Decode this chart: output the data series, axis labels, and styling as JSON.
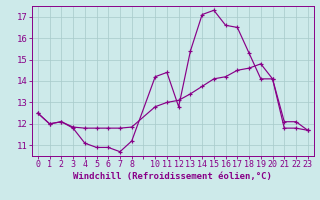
{
  "xlabel": "Windchill (Refroidissement éolien,°C)",
  "background_color": "#cdeaea",
  "line_color": "#880088",
  "grid_color": "#aacccc",
  "hours": [
    0,
    1,
    2,
    3,
    4,
    5,
    6,
    7,
    8,
    10,
    11,
    12,
    13,
    14,
    15,
    16,
    17,
    18,
    19,
    20,
    21,
    22,
    23
  ],
  "windchill": [
    12.5,
    12.0,
    12.1,
    11.8,
    11.1,
    10.9,
    10.9,
    10.7,
    11.2,
    14.2,
    14.4,
    12.8,
    15.4,
    17.1,
    17.3,
    16.6,
    16.5,
    15.3,
    14.1,
    14.1,
    12.1,
    12.1,
    11.7
  ],
  "temperature": [
    12.5,
    12.0,
    12.1,
    11.85,
    11.8,
    11.8,
    11.8,
    11.8,
    11.85,
    12.8,
    13.0,
    13.1,
    13.4,
    13.75,
    14.1,
    14.2,
    14.5,
    14.6,
    14.8,
    14.1,
    11.8,
    11.8,
    11.7
  ],
  "ylim": [
    10.5,
    17.5
  ],
  "yticks": [
    11,
    12,
    13,
    14,
    15,
    16,
    17
  ],
  "xtick_positions": [
    0,
    1,
    2,
    3,
    4,
    5,
    6,
    7,
    8,
    9,
    10,
    11,
    12,
    13,
    14,
    15,
    16,
    17,
    18,
    19,
    20,
    21,
    22,
    23
  ],
  "xtick_labels": [
    "0",
    "1",
    "2",
    "3",
    "4",
    "5",
    "6",
    "7",
    "8",
    "",
    "10",
    "11",
    "12",
    "13",
    "14",
    "15",
    "16",
    "17",
    "18",
    "19",
    "20",
    "21",
    "22",
    "23"
  ],
  "fontsize": 6.5,
  "marker_size": 3.5,
  "lw": 0.85
}
